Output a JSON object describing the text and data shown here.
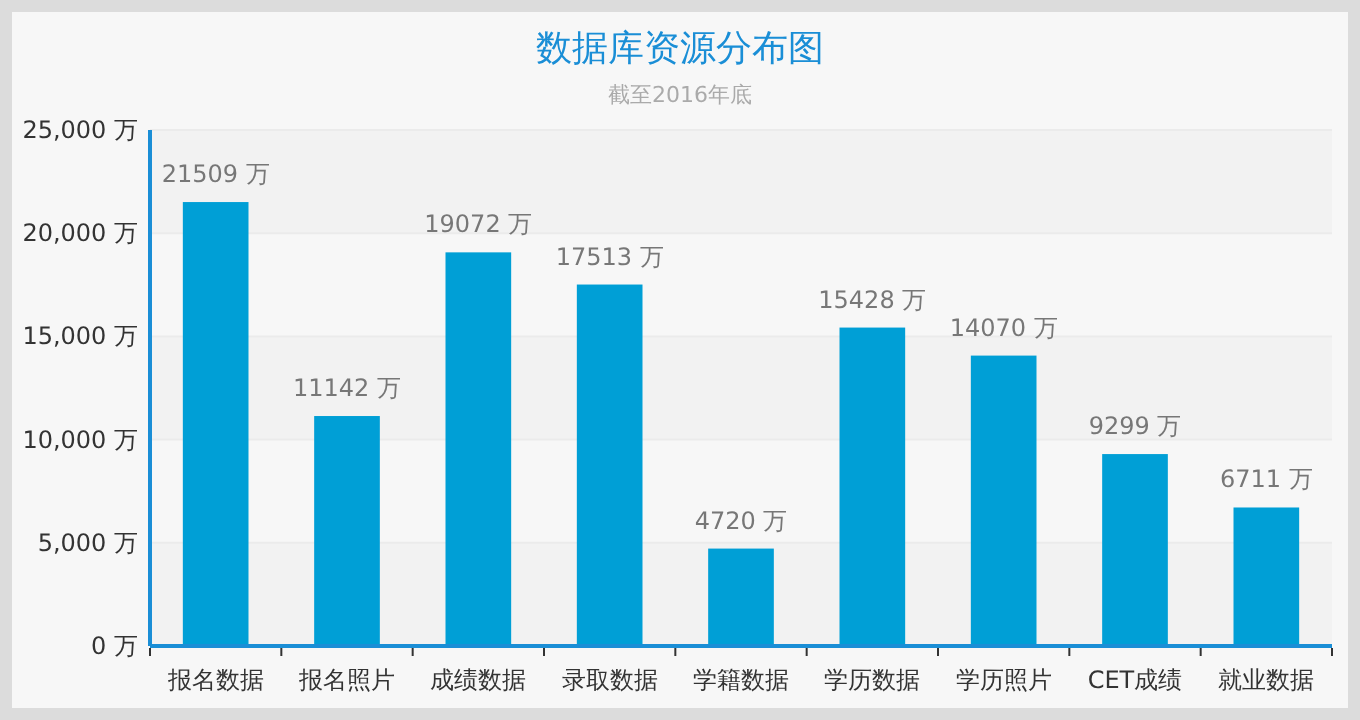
{
  "chart_data": {
    "type": "bar",
    "title": "数据库资源分布图",
    "subtitle": "截至2016年底",
    "categories": [
      "报名数据",
      "报名照片",
      "成绩数据",
      "录取数据",
      "学籍数据",
      "学历数据",
      "学历照片",
      "CET成绩",
      "就业数据"
    ],
    "values": [
      21509,
      11142,
      19072,
      17513,
      4720,
      15428,
      14070,
      9299,
      6711
    ],
    "value_labels": [
      "21509 万",
      "11142 万",
      "19072 万",
      "17513 万",
      "4720 万",
      "15428 万",
      "14070 万",
      "9299 万",
      "6711 万"
    ],
    "color": "#009fd6",
    "ylim": [
      0,
      25000
    ],
    "yticks": [
      {
        "value": 0,
        "label": "0 万"
      },
      {
        "value": 5000,
        "label": "5,000 万"
      },
      {
        "value": 10000,
        "label": "10,000 万"
      },
      {
        "value": 15000,
        "label": "15,000 万"
      },
      {
        "value": 20000,
        "label": "20,000 万"
      },
      {
        "value": 25000,
        "label": "25,000 万"
      }
    ],
    "grid": "y"
  }
}
